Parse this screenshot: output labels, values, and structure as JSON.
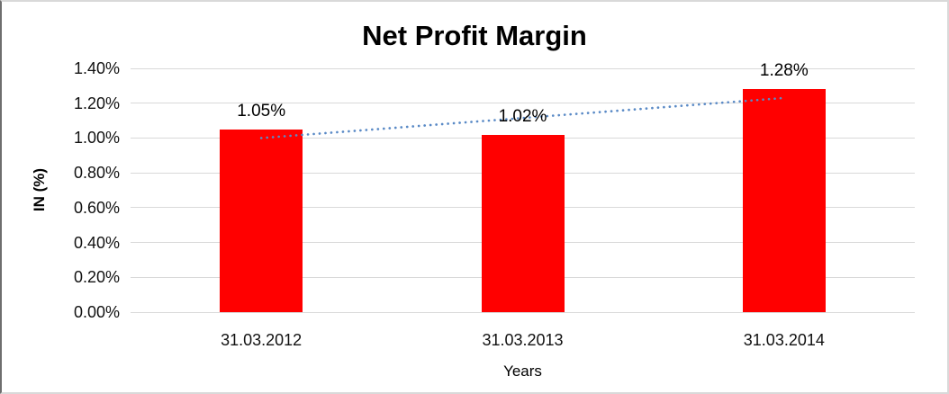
{
  "frame": {
    "background": "#ffffff",
    "border_color": "#d9d9d9"
  },
  "chart_data": {
    "type": "bar",
    "title": "Net Profit Margin",
    "xlabel": "Years",
    "ylabel": "IN (%)",
    "categories": [
      "31.03.2012",
      "31.03.2013",
      "31.03.2014"
    ],
    "series": [
      {
        "name": "Net Profit Margin",
        "values": [
          1.05,
          1.02,
          1.28
        ]
      }
    ],
    "data_labels": [
      "1.05%",
      "1.02%",
      "1.28%"
    ],
    "ylim": [
      0,
      1.4
    ],
    "ytick_step": 0.2,
    "ytick_labels": [
      "0.00%",
      "0.20%",
      "0.40%",
      "0.60%",
      "0.80%",
      "1.00%",
      "1.20%",
      "1.40%"
    ],
    "grid": true,
    "legend": "none",
    "bar_color": "#ff0000",
    "gridline_color": "#d9d9d9",
    "axis_line_color": "#d9d9d9",
    "text_color": "#000000",
    "trendline": {
      "type": "linear",
      "style": "dotted",
      "color": "#5a8ac6",
      "start_value": 1.0,
      "end_value": 1.23
    }
  }
}
